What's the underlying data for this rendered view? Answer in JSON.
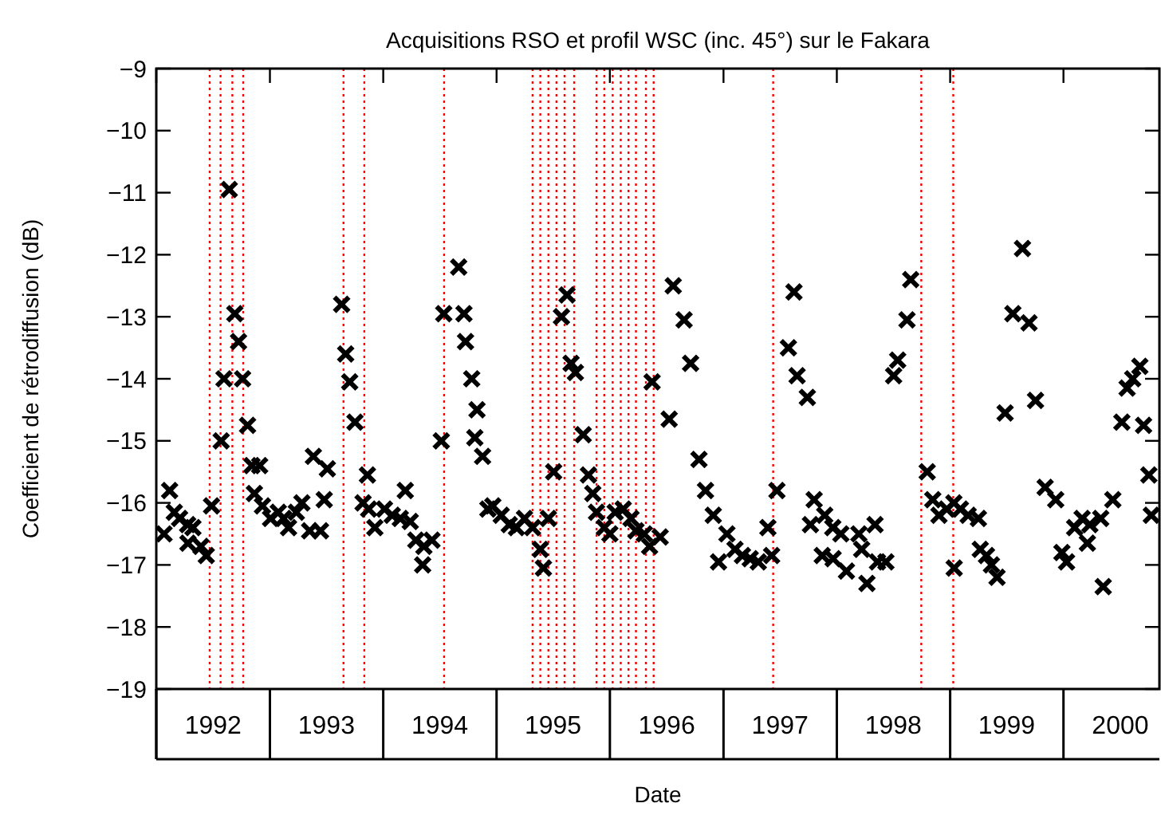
{
  "chart_data": {
    "type": "scatter",
    "title": "Acquisitions RSO et profil WSC (inc. 45°) sur le Fakara",
    "xlabel": "Date",
    "ylabel": "Coefficient de rétrodiffusion (dB)",
    "marker": "cross",
    "xlim": [
      "1992-01-01",
      "2000-11-05"
    ],
    "xticks": [
      {
        "value": "1992-01-01",
        "label": null
      },
      {
        "value": "1993-01-01",
        "label": null
      },
      {
        "value": "1994-01-01",
        "label": null
      },
      {
        "value": "1995-01-01",
        "label": null
      },
      {
        "value": "1996-01-01",
        "label": null
      },
      {
        "value": "1997-01-01",
        "label": null
      },
      {
        "value": "1998-01-01",
        "label": null
      },
      {
        "value": "1999-01-01",
        "label": null
      },
      {
        "value": "2000-01-01",
        "label": null
      },
      {
        "value": "1992-07-02",
        "label": "1992"
      },
      {
        "value": "1993-07-02",
        "label": "1993"
      },
      {
        "value": "1994-07-02",
        "label": "1994"
      },
      {
        "value": "1995-07-02",
        "label": "1995"
      },
      {
        "value": "1996-07-02",
        "label": "1996"
      },
      {
        "value": "1997-07-02",
        "label": "1997"
      },
      {
        "value": "1998-07-02",
        "label": "1998"
      },
      {
        "value": "1999-07-02",
        "label": "1999"
      },
      {
        "value": "2000-07-02",
        "label": "2000"
      }
    ],
    "ylim": [
      -19,
      -9
    ],
    "yticks": [
      -19,
      -18,
      -17,
      -16,
      -15,
      -14,
      -13,
      -12,
      -11,
      -10,
      -9
    ],
    "ref_lines": [
      {
        "axis": "x",
        "value": "1992-06-21",
        "label": null,
        "color": "#ff0000",
        "line_style": "dotted"
      },
      {
        "axis": "x",
        "value": "1992-07-26",
        "label": null,
        "color": "#ff0000",
        "line_style": "dotted"
      },
      {
        "axis": "x",
        "value": "1992-09-02",
        "label": null,
        "color": "#ff0000",
        "line_style": "dotted"
      },
      {
        "axis": "x",
        "value": "1992-10-07",
        "label": null,
        "color": "#ff0000",
        "line_style": "dotted"
      },
      {
        "axis": "x",
        "value": "1993-08-26",
        "label": null,
        "color": "#ff0000",
        "line_style": "dotted"
      },
      {
        "axis": "x",
        "value": "1993-11-01",
        "label": null,
        "color": "#ff0000",
        "line_style": "dotted"
      },
      {
        "axis": "x",
        "value": "1994-07-16",
        "label": null,
        "color": "#ff0000",
        "line_style": "dotted"
      },
      {
        "axis": "x",
        "value": "1995-04-27",
        "label": null,
        "color": "#ff0000",
        "line_style": "dotted"
      },
      {
        "axis": "x",
        "value": "1995-05-22",
        "label": null,
        "color": "#ff0000",
        "line_style": "dotted"
      },
      {
        "axis": "x",
        "value": "1995-06-17",
        "label": null,
        "color": "#ff0000",
        "line_style": "dotted"
      },
      {
        "axis": "x",
        "value": "1995-07-13",
        "label": null,
        "color": "#ff0000",
        "line_style": "dotted"
      },
      {
        "axis": "x",
        "value": "1995-08-08",
        "label": null,
        "color": "#ff0000",
        "line_style": "dotted"
      },
      {
        "axis": "x",
        "value": "1995-09-08",
        "label": null,
        "color": "#ff0000",
        "line_style": "dotted"
      },
      {
        "axis": "x",
        "value": "1995-11-19",
        "label": null,
        "color": "#ff0000",
        "line_style": "dotted"
      },
      {
        "axis": "x",
        "value": "1995-12-14",
        "label": null,
        "color": "#ff0000",
        "line_style": "dotted"
      },
      {
        "axis": "x",
        "value": "1996-01-10",
        "label": null,
        "color": "#ff0000",
        "line_style": "dotted"
      },
      {
        "axis": "x",
        "value": "1996-02-05",
        "label": null,
        "color": "#ff0000",
        "line_style": "dotted"
      },
      {
        "axis": "x",
        "value": "1996-03-01",
        "label": null,
        "color": "#ff0000",
        "line_style": "dotted"
      },
      {
        "axis": "x",
        "value": "1996-03-25",
        "label": null,
        "color": "#ff0000",
        "line_style": "dotted"
      },
      {
        "axis": "x",
        "value": "1996-04-26",
        "label": null,
        "color": "#ff0000",
        "line_style": "dotted"
      },
      {
        "axis": "x",
        "value": "1996-05-21",
        "label": null,
        "color": "#ff0000",
        "line_style": "dotted"
      },
      {
        "axis": "x",
        "value": "1997-06-10",
        "label": null,
        "color": "#ff0000",
        "line_style": "dotted"
      },
      {
        "axis": "x",
        "value": "1998-09-30",
        "label": null,
        "color": "#ff0000",
        "line_style": "dotted"
      },
      {
        "axis": "x",
        "value": "1999-01-11",
        "label": null,
        "color": "#ff0000",
        "line_style": "dotted"
      }
    ],
    "series": [
      {
        "color": "#000000",
        "x": [
          "1992-02-13",
          "1992-01-26",
          "1992-02-28",
          "1992-03-16",
          "1992-04-11",
          "1992-04-28",
          "1992-04-12",
          "1992-05-24",
          "1992-06-10",
          "1992-06-27",
          "1992-07-28",
          "1992-08-06",
          "1992-08-23",
          "1992-09-10",
          "1992-09-22",
          "1992-10-05",
          "1992-10-21",
          "1992-11-04",
          "1992-11-29",
          "1992-11-12",
          "1992-12-08",
          "1993-01-03",
          "1993-01-28",
          "1993-02-14",
          "1993-03-02",
          "1993-03-27",
          "1993-04-14",
          "1993-05-09",
          "1993-06-13",
          "1993-05-21",
          "1993-07-05",
          "1993-06-25",
          "1993-08-20",
          "1993-09-02",
          "1993-09-15",
          "1993-10-02",
          "1993-11-11",
          "1993-10-28",
          "1993-11-15",
          "1993-12-05",
          "1994-01-05",
          "1994-01-30",
          "1994-02-25",
          "1994-03-13",
          "1994-03-29",
          "1994-04-16",
          "1994-05-12",
          "1994-06-07",
          "1994-05-08",
          "1994-07-07",
          "1994-07-15",
          "1994-09-01",
          "1994-09-18",
          "1994-09-23",
          "1994-10-13",
          "1994-10-30",
          "1994-10-23",
          "1994-11-17",
          "1994-12-04",
          "1994-12-20",
          "1995-01-16",
          "1995-02-11",
          "1995-03-06",
          "1995-04-01",
          "1995-04-27",
          "1995-05-22",
          "1995-06-01",
          "1995-06-17",
          "1995-07-04",
          "1995-07-29",
          "1995-08-16",
          "1995-08-29",
          "1995-09-12",
          "1995-10-07",
          "1995-10-24",
          "1995-11-07",
          "1995-11-19",
          "1995-12-14",
          "1996-01-01",
          "1996-01-18",
          "1996-02-13",
          "1996-03-09",
          "1996-03-25",
          "1996-04-21",
          "1996-05-08",
          "1996-06-11",
          "1996-05-16",
          "1996-07-10",
          "1996-07-23",
          "1996-08-27",
          "1996-09-17",
          "1996-10-14",
          "1996-11-04",
          "1996-11-29",
          "1996-12-16",
          "1997-01-12",
          "1997-02-07",
          "1997-03-03",
          "1997-03-28",
          "1997-04-23",
          "1997-05-24",
          "1997-06-05",
          "1997-06-22",
          "1997-07-29",
          "1997-08-16",
          "1997-08-26",
          "1997-09-28",
          "1997-10-20",
          "1997-10-08",
          "1997-11-15",
          "1997-11-23",
          "1997-12-19",
          "1998-01-14",
          "1997-12-20",
          "1998-02-01",
          "1998-03-13",
          "1998-03-22",
          "1998-04-08",
          "1998-05-04",
          "1998-05-12",
          "1998-06-08",
          "1998-07-03",
          "1998-07-16",
          "1998-08-15",
          "1998-08-27",
          "1998-10-19",
          "1998-11-06",
          "1998-11-26",
          "1998-12-21",
          "1999-01-13",
          "1999-02-03",
          "1999-02-28",
          "1999-04-02",
          "1999-01-14",
          "1999-04-08",
          "1999-04-28",
          "1999-05-14",
          "1999-06-01",
          "1999-06-27",
          "1999-08-22",
          "1999-07-22",
          "1999-09-12",
          "1999-10-03",
          "1999-11-03",
          "1999-12-07",
          "1999-12-27",
          "2000-01-11",
          "2000-02-06",
          "2000-03-01",
          "2000-03-26",
          "2000-03-18",
          "2000-04-30",
          "2000-06-08",
          "2000-05-08",
          "2000-07-07",
          "2000-07-24",
          "2000-08-11",
          "2000-09-03",
          "2000-09-15",
          "2000-10-02",
          "2000-10-10"
        ],
        "values": [
          -15.8,
          -16.5,
          -16.15,
          -16.25,
          -16.35,
          -16.4,
          -16.65,
          -16.7,
          -16.85,
          -16.05,
          -15.0,
          -14.0,
          -10.95,
          -12.95,
          -13.4,
          -14.0,
          -14.75,
          -15.4,
          -15.4,
          -15.85,
          -16.05,
          -16.25,
          -16.15,
          -16.25,
          -16.4,
          -16.15,
          -16.0,
          -16.45,
          -16.45,
          -15.25,
          -15.45,
          -15.95,
          -12.8,
          -13.6,
          -14.05,
          -14.7,
          -15.55,
          -16.0,
          -16.1,
          -16.4,
          -16.1,
          -16.2,
          -16.25,
          -15.8,
          -16.3,
          -16.6,
          -16.7,
          -16.6,
          -17.0,
          -15.0,
          -12.95,
          -12.2,
          -12.95,
          -13.4,
          -14.0,
          -14.5,
          -14.95,
          -15.25,
          -16.1,
          -16.05,
          -16.2,
          -16.35,
          -16.4,
          -16.25,
          -16.4,
          -16.75,
          -17.05,
          -16.25,
          -15.5,
          -13.0,
          -12.65,
          -13.75,
          -13.9,
          -14.9,
          -15.55,
          -15.85,
          -16.15,
          -16.4,
          -16.5,
          -16.15,
          -16.1,
          -16.25,
          -16.45,
          -16.5,
          -16.7,
          -16.55,
          -14.05,
          -14.65,
          -12.5,
          -13.05,
          -13.75,
          -15.3,
          -15.8,
          -16.2,
          -16.95,
          -16.5,
          -16.75,
          -16.85,
          -16.9,
          -16.95,
          -16.4,
          -16.85,
          -15.8,
          -13.5,
          -12.6,
          -13.95,
          -14.3,
          -15.95,
          -16.35,
          -16.85,
          -16.2,
          -16.4,
          -16.5,
          -16.9,
          -17.1,
          -16.5,
          -16.75,
          -17.3,
          -16.35,
          -16.95,
          -16.95,
          -13.95,
          -13.7,
          -13.05,
          -12.4,
          -15.5,
          -15.95,
          -16.2,
          -16.1,
          -16.0,
          -16.1,
          -16.2,
          -16.25,
          -17.05,
          -16.75,
          -16.85,
          -17.0,
          -17.2,
          -14.55,
          -11.9,
          -12.95,
          -13.1,
          -14.35,
          -15.75,
          -15.95,
          -16.8,
          -16.95,
          -16.4,
          -16.25,
          -16.35,
          -16.65,
          -16.25,
          -15.95,
          -17.35,
          -14.7,
          -14.15,
          -14.0,
          -13.8,
          -14.75,
          -15.55,
          -16.2
        ]
      }
    ]
  }
}
